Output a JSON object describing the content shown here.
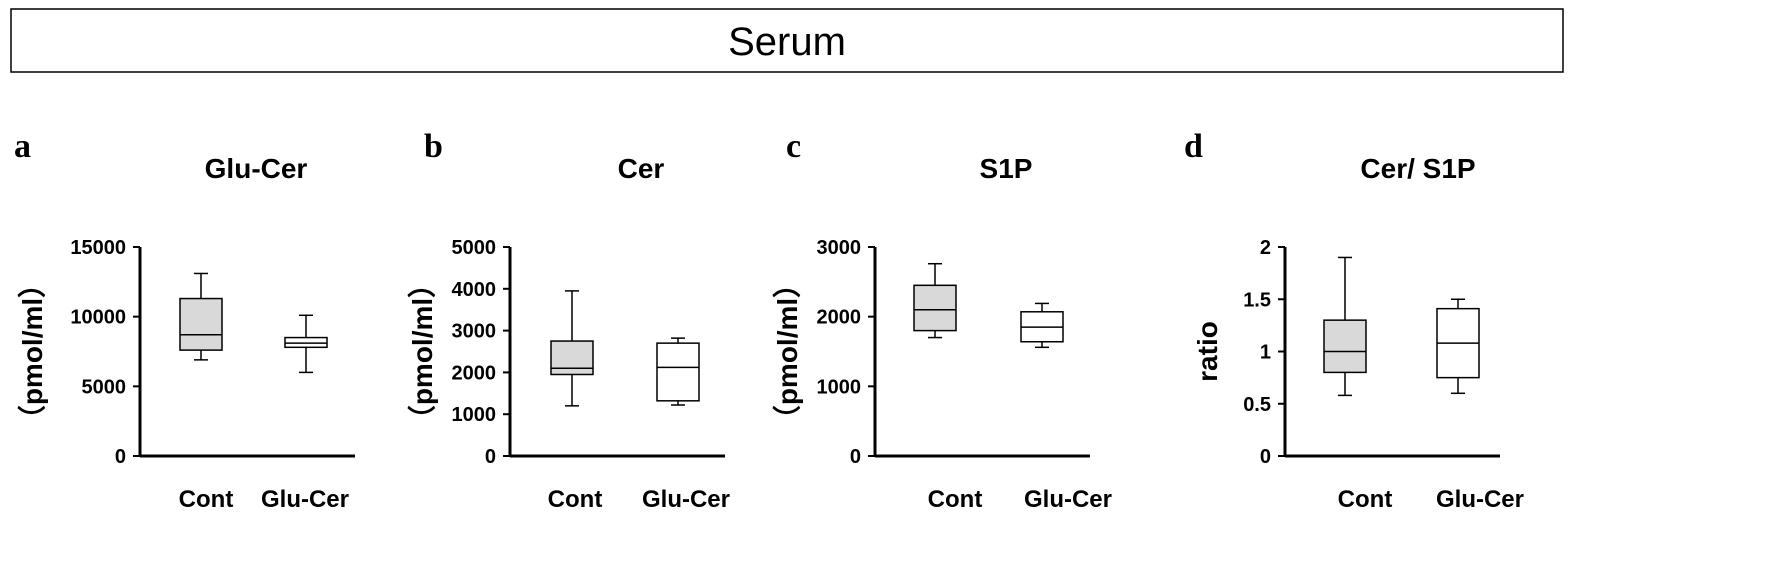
{
  "header": {
    "title": "Serum"
  },
  "colors": {
    "cont_fill": "#d9d9d9",
    "glucer_fill": "#ffffff",
    "stroke": "#000000"
  },
  "chart_data": [
    {
      "type": "box",
      "panel": "a",
      "title": "Glu-Cer",
      "ylabel": "（pmol/ml）",
      "ylim": [
        0,
        15000
      ],
      "yticks": [
        0,
        5000,
        10000,
        15000
      ],
      "categories": [
        "Cont",
        "Glu-Cer"
      ],
      "boxes": [
        {
          "category": "Cont",
          "min": 6900,
          "q1": 7600,
          "median": 8700,
          "q3": 11300,
          "max": 13100
        },
        {
          "category": "Glu-Cer",
          "min": 6000,
          "q1": 7800,
          "median": 8100,
          "q3": 8500,
          "max": 10100
        }
      ]
    },
    {
      "type": "box",
      "panel": "b",
      "title": "Cer",
      "ylabel": "（pmol/ml）",
      "ylim": [
        0,
        5000
      ],
      "yticks": [
        0,
        1000,
        2000,
        3000,
        4000,
        5000
      ],
      "categories": [
        "Cont",
        "Glu-Cer"
      ],
      "boxes": [
        {
          "category": "Cont",
          "min": 1200,
          "q1": 1950,
          "median": 2100,
          "q3": 2750,
          "max": 3950
        },
        {
          "category": "Glu-Cer",
          "min": 1220,
          "q1": 1320,
          "median": 2120,
          "q3": 2700,
          "max": 2820
        }
      ]
    },
    {
      "type": "box",
      "panel": "c",
      "title": "S1P",
      "ylabel": "（pmol/ml）",
      "ylim": [
        0,
        3000
      ],
      "yticks": [
        0,
        1000,
        2000,
        3000
      ],
      "categories": [
        "Cont",
        "Glu-Cer"
      ],
      "boxes": [
        {
          "category": "Cont",
          "min": 1700,
          "q1": 1800,
          "median": 2100,
          "q3": 2450,
          "max": 2760
        },
        {
          "category": "Glu-Cer",
          "min": 1560,
          "q1": 1640,
          "median": 1850,
          "q3": 2070,
          "max": 2190
        }
      ]
    },
    {
      "type": "box",
      "panel": "d",
      "title": "Cer/ S1P",
      "ylabel": "ratio",
      "ylim": [
        0,
        2
      ],
      "yticks": [
        0,
        0.5,
        1,
        1.5,
        2
      ],
      "categories": [
        "Cont",
        "Glu-Cer"
      ],
      "boxes": [
        {
          "category": "Cont",
          "min": 0.58,
          "q1": 0.8,
          "median": 1.0,
          "q3": 1.3,
          "max": 1.9
        },
        {
          "category": "Glu-Cer",
          "min": 0.6,
          "q1": 0.75,
          "median": 1.08,
          "q3": 1.41,
          "max": 1.5
        }
      ]
    }
  ]
}
